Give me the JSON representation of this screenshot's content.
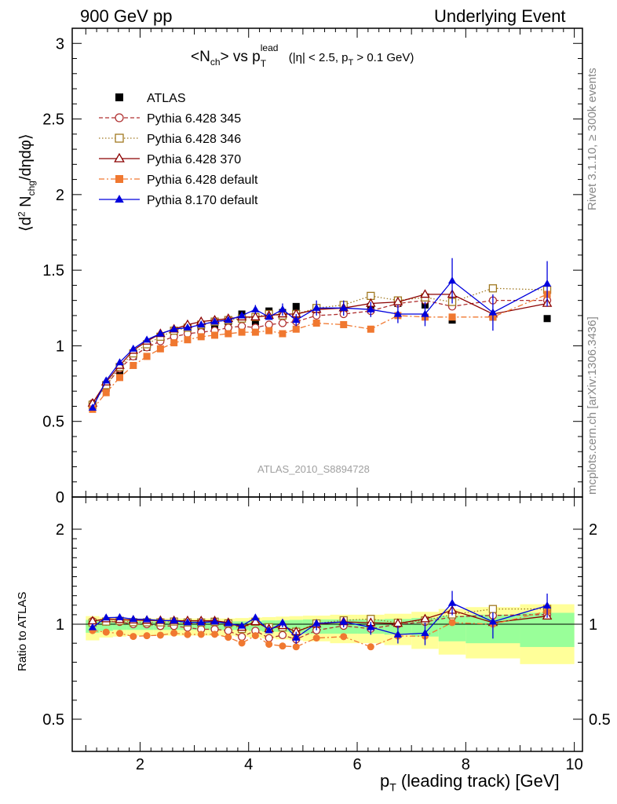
{
  "header": {
    "left": "900 GeV pp",
    "right": "Underlying Event"
  },
  "side_text": {
    "rivet": "Rivet 3.1.10, ≥ 300k events",
    "mcplots": "mcplots.cern.ch [arXiv:1306.3436]"
  },
  "watermark": "ATLAS_2010_S8894728",
  "chart_data": [
    {
      "type": "scatter",
      "panel": "main",
      "title_parts": {
        "left": "<N",
        "sub1": "ch",
        "mid": "> vs p",
        "sup": "lead",
        "sub2": "T",
        "cut_a": "(|η| < 2.5, p",
        "cut_sub": "T",
        "cut_b": " > 0.1 GeV)"
      },
      "ylabel_parts": {
        "a": "⟨d",
        "sup": "2",
        "b": " N",
        "sub": "chg",
        "c": "/dηdφ⟩"
      },
      "xlim": [
        0.75,
        10.15
      ],
      "ylim": [
        0,
        3.1
      ],
      "yticks": [
        0,
        0.5,
        1,
        1.5,
        2,
        2.5,
        3
      ],
      "ytick_labels": [
        "0",
        "0.5",
        "1",
        "1.5",
        "2",
        "2.5",
        "3"
      ],
      "x": [
        1.125,
        1.375,
        1.625,
        1.875,
        2.125,
        2.375,
        2.625,
        2.875,
        3.125,
        3.375,
        3.625,
        3.875,
        4.125,
        4.375,
        4.625,
        4.875,
        5.25,
        5.75,
        6.25,
        6.75,
        7.25,
        7.75,
        8.5,
        9.5
      ],
      "series": [
        {
          "name": "ATLAS",
          "color": "#000000",
          "marker": "square-filled",
          "line": "none",
          "y": [
            0.6,
            0.72,
            0.83,
            0.93,
            0.99,
            1.04,
            1.07,
            1.1,
            1.12,
            1.13,
            1.16,
            1.21,
            1.16,
            1.23,
            1.22,
            1.26,
            1.24,
            1.22,
            1.26,
            1.28,
            1.27,
            1.17,
            1.19,
            1.18
          ]
        },
        {
          "name": "Pythia 6.428 345",
          "color": "#b03030",
          "marker": "circle-open",
          "line": "dashed",
          "y": [
            0.62,
            0.74,
            0.85,
            0.93,
            0.99,
            1.03,
            1.06,
            1.08,
            1.09,
            1.1,
            1.12,
            1.13,
            1.12,
            1.14,
            1.15,
            1.16,
            1.2,
            1.21,
            1.23,
            1.28,
            1.3,
            1.26,
            1.3,
            1.3
          ]
        },
        {
          "name": "Pythia 6.428 346",
          "color": "#a07820",
          "marker": "square-open",
          "line": "dotted",
          "y": [
            0.61,
            0.74,
            0.86,
            0.95,
            1.01,
            1.06,
            1.1,
            1.12,
            1.14,
            1.16,
            1.17,
            1.18,
            1.19,
            1.21,
            1.2,
            1.21,
            1.25,
            1.27,
            1.33,
            1.3,
            1.32,
            1.29,
            1.38,
            1.37
          ]
        },
        {
          "name": "Pythia 6.428 370",
          "color": "#8b0000",
          "marker": "triangle-open",
          "line": "solid",
          "y": [
            0.62,
            0.76,
            0.87,
            0.97,
            1.03,
            1.08,
            1.11,
            1.14,
            1.16,
            1.17,
            1.18,
            1.19,
            1.19,
            1.2,
            1.21,
            1.21,
            1.24,
            1.25,
            1.28,
            1.29,
            1.34,
            1.34,
            1.21,
            1.28
          ]
        },
        {
          "name": "Pythia 6.428 default",
          "color": "#f07830",
          "marker": "square-filled",
          "line": "dashdot",
          "y": [
            0.58,
            0.69,
            0.79,
            0.87,
            0.93,
            0.98,
            1.02,
            1.04,
            1.06,
            1.07,
            1.08,
            1.09,
            1.09,
            1.1,
            1.08,
            1.11,
            1.15,
            1.14,
            1.11,
            1.2,
            1.19,
            1.19,
            1.19,
            1.34
          ]
        },
        {
          "name": "Pythia 8.170 default",
          "color": "#0000dd",
          "marker": "triangle-filled",
          "line": "solid",
          "y": [
            0.59,
            0.77,
            0.89,
            0.98,
            1.04,
            1.08,
            1.11,
            1.12,
            1.14,
            1.16,
            1.17,
            1.2,
            1.24,
            1.19,
            1.24,
            1.17,
            1.25,
            1.25,
            1.24,
            1.21,
            1.21,
            1.43,
            1.22,
            1.41
          ],
          "err": [
            0,
            0,
            0,
            0,
            0,
            0,
            0,
            0,
            0,
            0,
            0,
            0,
            0.03,
            0,
            0.04,
            0.04,
            0.05,
            0.05,
            0.05,
            0.06,
            0.08,
            0.15,
            0.12,
            0.15
          ]
        }
      ]
    },
    {
      "type": "scatter",
      "panel": "ratio",
      "ylabel": "Ratio to ATLAS",
      "xlabel_parts": {
        "a": "p",
        "sub": "T",
        "b": " (leading track) [GeV]"
      },
      "xlim": [
        0.75,
        10.15
      ],
      "ylim": [
        0.25,
        2.4
      ],
      "xticks": [
        2,
        4,
        6,
        8,
        10
      ],
      "xtick_labels": [
        "2",
        "4",
        "6",
        "8",
        "10"
      ],
      "yticks": [
        0.5,
        1,
        2
      ],
      "ytick_labels": [
        "0.5",
        "1",
        "2"
      ],
      "bands": {
        "yellow_color": "#ffff99",
        "green_color": "#99ff99",
        "edges": [
          1.0,
          1.25,
          1.5,
          1.75,
          2.0,
          2.25,
          2.5,
          2.75,
          3.0,
          3.25,
          3.5,
          3.75,
          4.0,
          4.25,
          4.5,
          4.75,
          5.0,
          5.5,
          6.0,
          6.5,
          7.0,
          7.5,
          8.0,
          9.0,
          10.0
        ],
        "yellow_half": [
          0.085,
          0.07,
          0.065,
          0.06,
          0.06,
          0.06,
          0.06,
          0.06,
          0.06,
          0.06,
          0.06,
          0.065,
          0.07,
          0.075,
          0.08,
          0.085,
          0.09,
          0.1,
          0.1,
          0.11,
          0.13,
          0.16,
          0.18,
          0.21
        ],
        "green_half": [
          0.045,
          0.035,
          0.03,
          0.03,
          0.03,
          0.03,
          0.03,
          0.03,
          0.03,
          0.03,
          0.03,
          0.03,
          0.035,
          0.04,
          0.04,
          0.045,
          0.05,
          0.05,
          0.05,
          0.055,
          0.065,
          0.09,
          0.1,
          0.12
        ]
      }
    }
  ]
}
